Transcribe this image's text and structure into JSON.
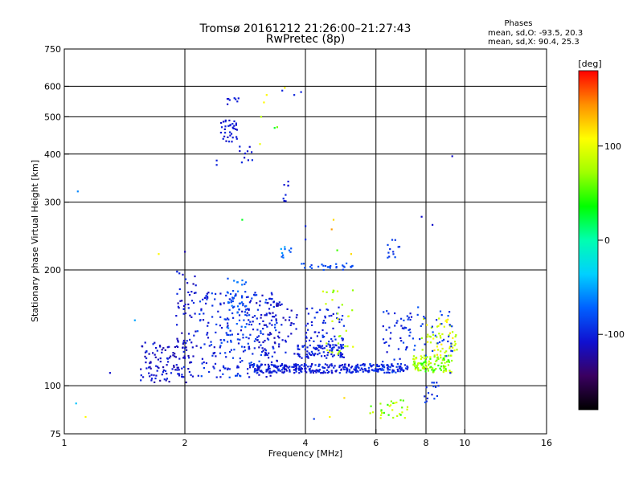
{
  "chart_data": {
    "type": "scatter",
    "title": "Tromsø 20161212 21:26:00–21:27:43",
    "subtitle": "RwPretec (8p)",
    "phase_box": {
      "heading": "Phases",
      "line1": "mean, sd,O: -93.5, 20.3",
      "line2": "mean, sd,X:  90.4, 25.3"
    },
    "xlabel": "Frequency [MHz]",
    "ylabel": "Stationary phase Virtual Height [km]",
    "x_scale": "log",
    "y_scale": "log",
    "xlim": [
      1,
      16
    ],
    "ylim": [
      75,
      750
    ],
    "x_ticks": [
      1,
      2,
      4,
      6,
      8,
      10,
      16
    ],
    "x_tick_labels": [
      "1",
      "2",
      "4",
      "6",
      "8",
      "10",
      "16"
    ],
    "x_gridlines": [
      2,
      4,
      6,
      8,
      10
    ],
    "y_ticks": [
      75,
      100,
      200,
      300,
      400,
      500,
      600,
      750
    ],
    "y_tick_labels": [
      "75",
      "100",
      "200",
      "300",
      "400",
      "500",
      "600",
      "750"
    ],
    "y_gridlines": [
      100,
      200,
      300,
      400,
      500,
      600
    ],
    "grid": true,
    "colorbar": {
      "label": "[deg]",
      "range": [
        -180,
        180
      ],
      "ticks": [
        100,
        0,
        -100
      ],
      "tick_labels": [
        "100",
        "0",
        "-100"
      ],
      "colors": [
        "#000000",
        "#3a0060",
        "#1010d0",
        "#0060ff",
        "#00d0ff",
        "#00ffb0",
        "#00ff00",
        "#a0ff00",
        "#ffff00",
        "#ff9000",
        "#ff0000"
      ]
    },
    "clusters": [
      {
        "f": [
          1.55,
          2.1
        ],
        "h": [
          102,
          130
        ],
        "phase": [
          -125,
          -95
        ],
        "n": 120
      },
      {
        "f": [
          1.9,
          2.15
        ],
        "h": [
          125,
          200
        ],
        "phase": [
          -120,
          -95
        ],
        "n": 50
      },
      {
        "f": [
          2.15,
          3.4
        ],
        "h": [
          105,
          175
        ],
        "phase": [
          -115,
          -80
        ],
        "n": 260
      },
      {
        "f": [
          2.55,
          2.85
        ],
        "h": [
          140,
          190
        ],
        "phase": [
          -90,
          -60
        ],
        "n": 40
      },
      {
        "f": [
          3.0,
          3.9
        ],
        "h": [
          120,
          165
        ],
        "phase": [
          -120,
          -95
        ],
        "n": 70
      },
      {
        "f": [
          2.9,
          5.2
        ],
        "h": [
          108,
          114
        ],
        "phase": [
          -115,
          -90
        ],
        "n": 200
      },
      {
        "f": [
          3.8,
          5.0
        ],
        "h": [
          118,
          128
        ],
        "phase": [
          -110,
          -90
        ],
        "n": 90
      },
      {
        "f": [
          4.0,
          5.0
        ],
        "h": [
          127,
          160
        ],
        "phase": [
          -110,
          -90
        ],
        "n": 60
      },
      {
        "f": [
          4.4,
          5.3
        ],
        "h": [
          120,
          178
        ],
        "phase": [
          60,
          100
        ],
        "n": 30
      },
      {
        "f": [
          5.2,
          7.2
        ],
        "h": [
          108,
          114
        ],
        "phase": [
          -110,
          -80
        ],
        "n": 110
      },
      {
        "f": [
          6.2,
          7.4
        ],
        "h": [
          110,
          160
        ],
        "phase": [
          -110,
          -85
        ],
        "n": 45
      },
      {
        "f": [
          7.4,
          9.3
        ],
        "h": [
          108,
          120
        ],
        "phase": [
          40,
          100
        ],
        "n": 110
      },
      {
        "f": [
          7.8,
          9.6
        ],
        "h": [
          118,
          150
        ],
        "phase": [
          70,
          120
        ],
        "n": 60
      },
      {
        "f": [
          7.0,
          9.4
        ],
        "h": [
          115,
          160
        ],
        "phase": [
          -100,
          -75
        ],
        "n": 40
      },
      {
        "f": [
          3.9,
          5.3
        ],
        "h": [
          200,
          208
        ],
        "phase": [
          -95,
          -70
        ],
        "n": 28
      },
      {
        "f": [
          2.45,
          2.7
        ],
        "h": [
          430,
          490
        ],
        "phase": [
          -115,
          -95
        ],
        "n": 35
      },
      {
        "f": [
          2.55,
          2.75
        ],
        "h": [
          520,
          570
        ],
        "phase": [
          -110,
          -95
        ],
        "n": 8
      },
      {
        "f": [
          2.7,
          2.95
        ],
        "h": [
          370,
          420
        ],
        "phase": [
          -115,
          -95
        ],
        "n": 10
      },
      {
        "f": [
          3.5,
          3.65
        ],
        "h": [
          300,
          340
        ],
        "phase": [
          -110,
          -95
        ],
        "n": 8
      },
      {
        "f": [
          5.8,
          7.2
        ],
        "h": [
          82,
          92
        ],
        "phase": [
          30,
          100
        ],
        "n": 30
      },
      {
        "f": [
          7.9,
          8.6
        ],
        "h": [
          90,
          103
        ],
        "phase": [
          -105,
          -80
        ],
        "n": 15
      },
      {
        "f": [
          3.4,
          3.7
        ],
        "h": [
          205,
          230
        ],
        "phase": [
          -80,
          -40
        ],
        "n": 10
      },
      {
        "f": [
          6.4,
          7.0
        ],
        "h": [
          215,
          240
        ],
        "phase": [
          -100,
          -80
        ],
        "n": 12
      }
    ],
    "points": [
      {
        "f": 1.08,
        "h": 320,
        "phase": -60
      },
      {
        "f": 1.07,
        "h": 90,
        "phase": -40
      },
      {
        "f": 1.13,
        "h": 83,
        "phase": 110
      },
      {
        "f": 1.3,
        "h": 108,
        "phase": -110
      },
      {
        "f": 1.5,
        "h": 148,
        "phase": -50
      },
      {
        "f": 1.72,
        "h": 220,
        "phase": 110
      },
      {
        "f": 2.0,
        "h": 223,
        "phase": -120
      },
      {
        "f": 2.4,
        "h": 385,
        "phase": -100
      },
      {
        "f": 2.4,
        "h": 375,
        "phase": -100
      },
      {
        "f": 2.78,
        "h": 270,
        "phase": 30
      },
      {
        "f": 3.1,
        "h": 500,
        "phase": 80
      },
      {
        "f": 3.15,
        "h": 545,
        "phase": 110
      },
      {
        "f": 3.2,
        "h": 570,
        "phase": 110
      },
      {
        "f": 3.08,
        "h": 425,
        "phase": 100
      },
      {
        "f": 3.35,
        "h": 468,
        "phase": 30
      },
      {
        "f": 3.4,
        "h": 470,
        "phase": 60
      },
      {
        "f": 3.55,
        "h": 595,
        "phase": 110
      },
      {
        "f": 3.5,
        "h": 585,
        "phase": -100
      },
      {
        "f": 3.75,
        "h": 570,
        "phase": -100
      },
      {
        "f": 3.9,
        "h": 580,
        "phase": -100
      },
      {
        "f": 4.0,
        "h": 260,
        "phase": -100
      },
      {
        "f": 4.0,
        "h": 240,
        "phase": -95
      },
      {
        "f": 4.7,
        "h": 270,
        "phase": 120
      },
      {
        "f": 4.65,
        "h": 255,
        "phase": 140
      },
      {
        "f": 4.8,
        "h": 225,
        "phase": 50
      },
      {
        "f": 5.2,
        "h": 220,
        "phase": 120
      },
      {
        "f": 7.8,
        "h": 275,
        "phase": -110
      },
      {
        "f": 8.3,
        "h": 262,
        "phase": -110
      },
      {
        "f": 9.3,
        "h": 395,
        "phase": -110
      },
      {
        "f": 4.6,
        "h": 83,
        "phase": 110
      },
      {
        "f": 4.2,
        "h": 82,
        "phase": -90
      },
      {
        "f": 5.0,
        "h": 93,
        "phase": 120
      },
      {
        "f": 9.2,
        "h": 108,
        "phase": -100
      }
    ]
  }
}
